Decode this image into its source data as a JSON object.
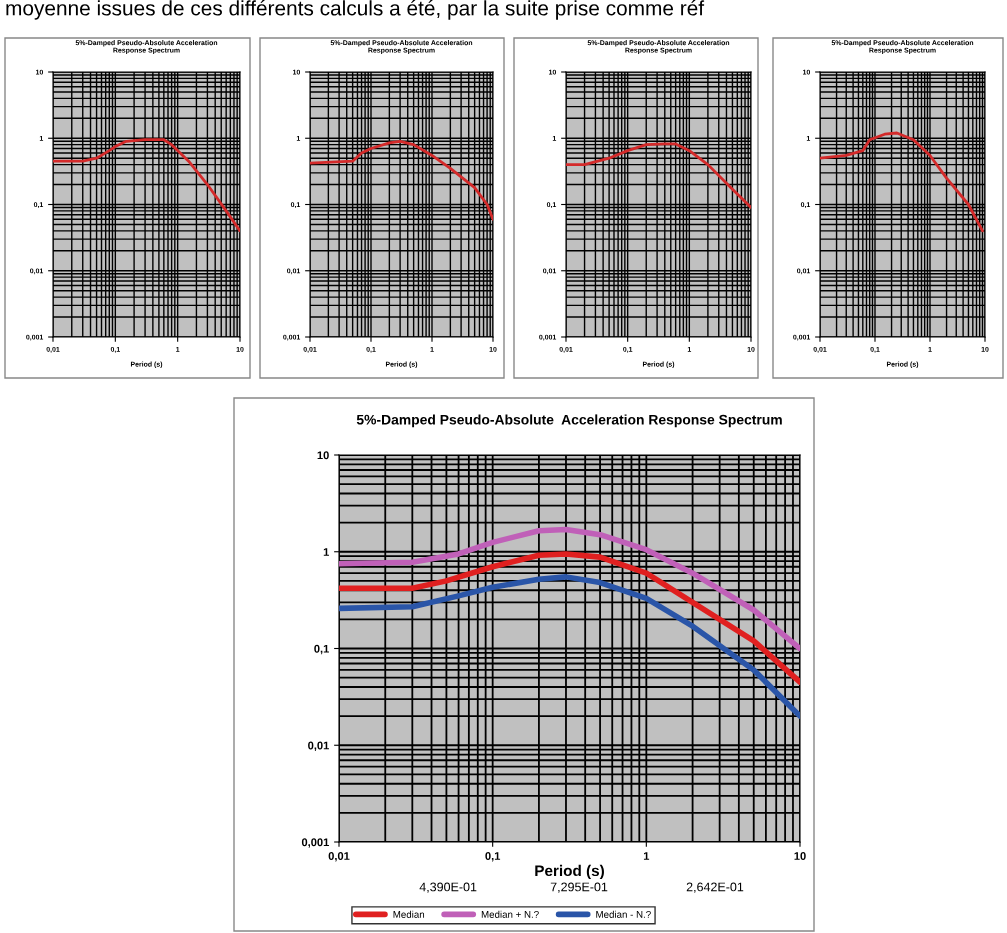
{
  "chart_data": [
    {
      "type": "line",
      "title": "5%-Damped Pseudo-Absolute Acceleration\nResponse Spectrum",
      "xlabel": "Period (s)",
      "log": "xy",
      "grid": true,
      "annotations": [
        "moyenne issues de ces différents calculs a été, par la suite prise comme réf"
      ],
      "xlim": [
        0.01,
        10
      ],
      "ylim": [
        0.001,
        10
      ],
      "xticks": [
        {
          "value": 0.01,
          "label": "0,01"
        },
        {
          "value": 0.1,
          "label": "0,1"
        },
        {
          "value": 1,
          "label": "1"
        },
        {
          "value": 10,
          "label": "10"
        }
      ],
      "yticks": [
        {
          "value": 0.001,
          "label": "0,001"
        },
        {
          "value": 0.01,
          "label": "0,01"
        },
        {
          "value": 0.1,
          "label": "0,1"
        },
        {
          "value": 1,
          "label": "1"
        },
        {
          "value": 10,
          "label": "10"
        }
      ],
      "series": [
        {
          "color": "#d42a2a",
          "x": [
            0.01,
            0.03,
            0.05,
            0.08,
            0.1,
            0.15,
            0.3,
            0.6,
            0.8,
            1.5,
            3,
            6,
            10
          ],
          "values": [
            0.45,
            0.45,
            0.5,
            0.65,
            0.75,
            0.9,
            0.95,
            0.95,
            0.8,
            0.45,
            0.2,
            0.08,
            0.04
          ]
        }
      ]
    },
    {
      "type": "line",
      "title": "5%-Damped Pseudo-Absolute Acceleration\nResponse Spectrum",
      "xlabel": "Period (s)",
      "log": "xy",
      "grid": true,
      "xlim": [
        0.01,
        10
      ],
      "ylim": [
        0.001,
        10
      ],
      "xticks": [
        {
          "value": 0.01,
          "label": "0,01"
        },
        {
          "value": 0.1,
          "label": "0,1"
        },
        {
          "value": 1,
          "label": "1"
        },
        {
          "value": 10,
          "label": "10"
        }
      ],
      "yticks": [
        {
          "value": 0.001,
          "label": "0,001"
        },
        {
          "value": 0.01,
          "label": "0,01"
        },
        {
          "value": 0.1,
          "label": "0,1"
        },
        {
          "value": 1,
          "label": "1"
        },
        {
          "value": 10,
          "label": "10"
        }
      ],
      "series": [
        {
          "color": "#d42a2a",
          "x": [
            0.01,
            0.05,
            0.07,
            0.1,
            0.2,
            0.3,
            0.5,
            1,
            2,
            5,
            8,
            10
          ],
          "values": [
            0.42,
            0.45,
            0.6,
            0.7,
            0.85,
            0.9,
            0.8,
            0.55,
            0.35,
            0.18,
            0.1,
            0.06
          ]
        }
      ]
    },
    {
      "type": "line",
      "title": "5%-Damped Pseudo-Absolute Acceleration\nResponse Spectrum",
      "xlabel": "Period (s)",
      "log": "xy",
      "grid": true,
      "xlim": [
        0.01,
        10
      ],
      "ylim": [
        0.001,
        10
      ],
      "xticks": [
        {
          "value": 0.01,
          "label": "0,01"
        },
        {
          "value": 0.1,
          "label": "0,1"
        },
        {
          "value": 1,
          "label": "1"
        },
        {
          "value": 10,
          "label": "10"
        }
      ],
      "yticks": [
        {
          "value": 0.001,
          "label": "0,001"
        },
        {
          "value": 0.01,
          "label": "0,01"
        },
        {
          "value": 0.1,
          "label": "0,1"
        },
        {
          "value": 1,
          "label": "1"
        },
        {
          "value": 10,
          "label": "10"
        }
      ],
      "series": [
        {
          "color": "#d42a2a",
          "x": [
            0.01,
            0.02,
            0.05,
            0.1,
            0.2,
            0.4,
            0.6,
            1,
            2,
            5,
            10
          ],
          "values": [
            0.4,
            0.4,
            0.5,
            0.65,
            0.8,
            0.82,
            0.82,
            0.65,
            0.4,
            0.17,
            0.09
          ]
        }
      ]
    },
    {
      "type": "line",
      "title": "5%-Damped Pseudo-Absolute Acceleration\nResponse Spectrum",
      "xlabel": "Period (s)",
      "log": "xy",
      "grid": true,
      "xlim": [
        0.01,
        10
      ],
      "ylim": [
        0.001,
        10
      ],
      "xticks": [
        {
          "value": 0.01,
          "label": "0,01"
        },
        {
          "value": 0.1,
          "label": "0,1"
        },
        {
          "value": 1,
          "label": "1"
        },
        {
          "value": 10,
          "label": "10"
        }
      ],
      "yticks": [
        {
          "value": 0.001,
          "label": "0,001"
        },
        {
          "value": 0.01,
          "label": "0,01"
        },
        {
          "value": 0.1,
          "label": "0,1"
        },
        {
          "value": 1,
          "label": "1"
        },
        {
          "value": 10,
          "label": "10"
        }
      ],
      "series": [
        {
          "color": "#d42a2a",
          "x": [
            0.01,
            0.03,
            0.06,
            0.08,
            0.15,
            0.25,
            0.5,
            1,
            2,
            5,
            9
          ],
          "values": [
            0.5,
            0.55,
            0.65,
            0.95,
            1.15,
            1.2,
            0.95,
            0.55,
            0.25,
            0.1,
            0.04
          ]
        }
      ]
    },
    {
      "type": "line",
      "title": "5%-Damped Pseudo-Absolute  Acceleration Response Spectrum",
      "xlabel": "Period (s)",
      "log": "xy",
      "grid": true,
      "legend": "bottom",
      "annotations": [
        "4,390E-01",
        "7,295E-01",
        "2,642E-01"
      ],
      "xlim": [
        0.01,
        10
      ],
      "ylim": [
        0.001,
        10
      ],
      "xticks": [
        {
          "value": 0.01,
          "label": "0,01"
        },
        {
          "value": 0.1,
          "label": "0,1"
        },
        {
          "value": 1,
          "label": "1"
        },
        {
          "value": 10,
          "label": "10"
        }
      ],
      "yticks": [
        {
          "value": 0.001,
          "label": "0,001"
        },
        {
          "value": 0.01,
          "label": "0,01"
        },
        {
          "value": 0.1,
          "label": "0,1"
        },
        {
          "value": 1,
          "label": "1"
        },
        {
          "value": 10,
          "label": "10"
        }
      ],
      "series": [
        {
          "name": "Median",
          "color": "#e02020",
          "x": [
            0.01,
            0.03,
            0.05,
            0.1,
            0.2,
            0.3,
            0.5,
            1,
            2,
            5,
            10
          ],
          "values": [
            0.42,
            0.42,
            0.5,
            0.7,
            0.92,
            0.95,
            0.88,
            0.6,
            0.3,
            0.12,
            0.045
          ]
        },
        {
          "name": "Median + N.?",
          "color": "#c060b8",
          "x": [
            0.01,
            0.03,
            0.06,
            0.1,
            0.2,
            0.3,
            0.5,
            1,
            2,
            5,
            10
          ],
          "values": [
            0.75,
            0.78,
            0.95,
            1.25,
            1.65,
            1.7,
            1.5,
            1.05,
            0.6,
            0.25,
            0.1
          ]
        },
        {
          "name": "Median - N.?",
          "color": "#2a55a8",
          "x": [
            0.01,
            0.03,
            0.06,
            0.1,
            0.2,
            0.3,
            0.5,
            1,
            2,
            5,
            10
          ],
          "values": [
            0.26,
            0.27,
            0.35,
            0.43,
            0.52,
            0.55,
            0.48,
            0.33,
            0.17,
            0.06,
            0.02
          ]
        }
      ]
    }
  ]
}
